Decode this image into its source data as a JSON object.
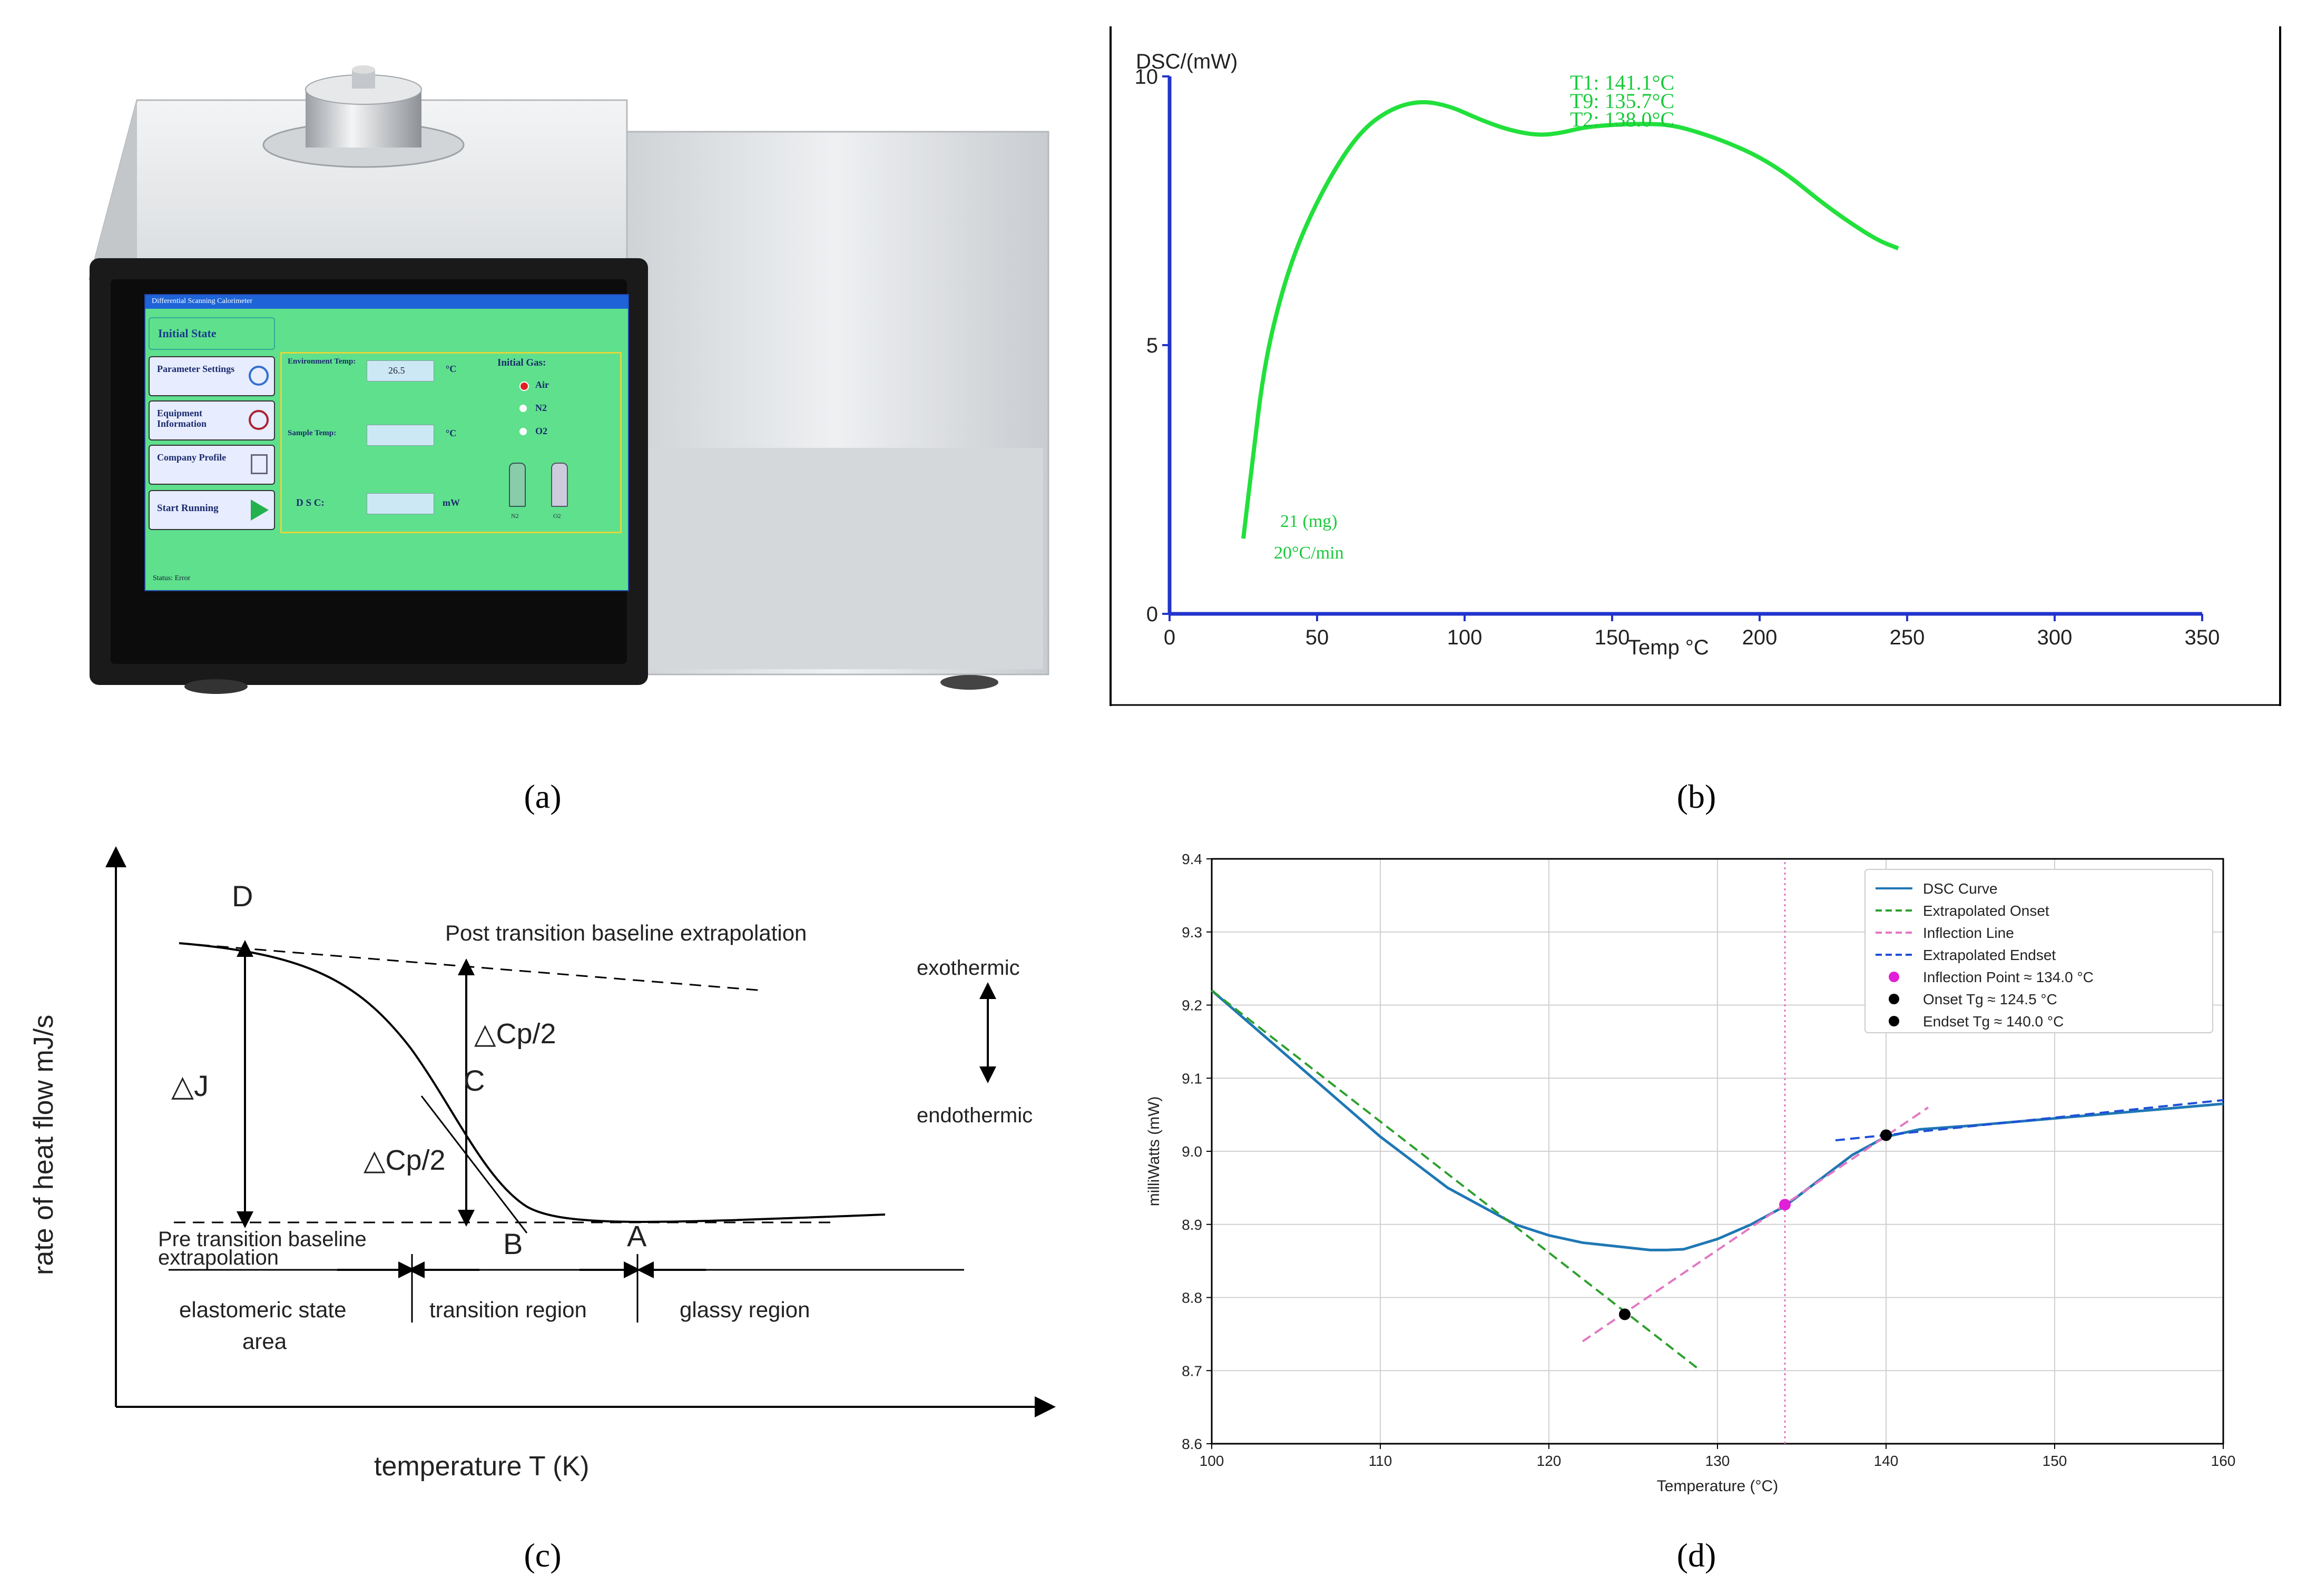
{
  "figure": {
    "captions": [
      "(a)",
      "(b)",
      "(c)",
      "(d)"
    ]
  },
  "panel_a": {
    "screen_title": "Differential Scanning Calorimeter",
    "menu": [
      "Initial State",
      "Parameter Settings",
      "Equipment Information",
      "Company Profile",
      "Start Running"
    ],
    "env_temp_label": "Environment Temp:",
    "env_temp_value": "26.5",
    "env_temp_unit": "°C",
    "sample_temp_label": "Sample Temp:",
    "sample_temp_unit": "°C",
    "dsc_label": "D S C:",
    "dsc_unit": "mW",
    "gas_title": "Initial Gas:",
    "gas_options": [
      "Air",
      "N2",
      "O2"
    ],
    "gas_selected": "Air",
    "gas_bottle_labels": [
      "N2",
      "O2"
    ],
    "status_text": "Status:  Error",
    "colors": {
      "screen_bg": "#5fe08d",
      "menu_bg": "#e7ecff",
      "header_bg": "#1e64d8"
    }
  },
  "panel_b": {
    "chart_data": {
      "type": "line",
      "ylabel": "DSC/(mW)",
      "xlabel": "Temp °C",
      "xlim": [
        0,
        350
      ],
      "ylim": [
        0,
        10
      ],
      "x_ticks": [
        "0",
        "50",
        "100",
        "150",
        "200",
        "250",
        "300",
        "350"
      ],
      "y_ticks": [
        "0",
        "5",
        "10"
      ],
      "annotations": [
        "T1: 141.1°C",
        "T9: 135.7°C",
        "T2: 138.0°C",
        "21 (mg)",
        "20°C/min"
      ],
      "series": [
        {
          "color": "#22e03c",
          "x": [
            25,
            28,
            32,
            38,
            45,
            55,
            65,
            75,
            85,
            95,
            105,
            115,
            125,
            133,
            140,
            150,
            160,
            170,
            180,
            190,
            200,
            210,
            220,
            230,
            240,
            247
          ],
          "y": [
            1.4,
            2.8,
            4.6,
            6.0,
            7.1,
            8.2,
            9.0,
            9.4,
            9.55,
            9.45,
            9.2,
            9.0,
            8.9,
            8.95,
            9.05,
            9.1,
            9.12,
            9.1,
            8.95,
            8.75,
            8.5,
            8.15,
            7.7,
            7.3,
            6.95,
            6.8
          ]
        }
      ],
      "grid": false
    }
  },
  "panel_c": {
    "ylabel": "rate of heat flow mJ/s",
    "xlabel": "temperature T (K)",
    "labels": {
      "D": "D",
      "C": "C",
      "B": "B",
      "A": "A",
      "dJ": "△J",
      "dcp_top": "△Cp/2",
      "dcp_bottom": "△Cp/2",
      "post": "Post transition baseline extrapolation",
      "pre_1": "Pre transition baseline",
      "pre_2": "extrapolation",
      "exo": "exothermic",
      "endo": "endothermic",
      "region1_1": "elastomeric state",
      "region1_2": "area",
      "region2": "transition region",
      "region3": "glassy region"
    }
  },
  "panel_d": {
    "chart_data": {
      "type": "line",
      "xlabel": "Temperature (°C)",
      "ylabel": "milliWatts (mW)",
      "xlim": [
        100,
        160
      ],
      "ylim": [
        8.6,
        9.4
      ],
      "x_ticks": [
        "100",
        "110",
        "120",
        "130",
        "140",
        "150",
        "160"
      ],
      "y_ticks": [
        "8.6",
        "8.7",
        "8.8",
        "8.9",
        "9.0",
        "9.1",
        "9.2",
        "9.3",
        "9.4"
      ],
      "grid": true,
      "legend_position": "top-right",
      "legend": [
        "DSC Curve",
        "Extrapolated Onset",
        "Inflection Line",
        "Extrapolated Endset",
        "Inflection Point ≈ 134.0 °C",
        "Onset Tg ≈ 124.5 °C",
        "Endset Tg ≈ 140.0 °C"
      ],
      "series": [
        {
          "name": "DSC Curve",
          "color": "#1f77b4",
          "x": [
            100,
            102,
            104,
            106,
            108,
            110,
            112,
            114,
            116,
            118,
            120,
            122,
            124,
            126,
            127,
            128,
            130,
            132,
            134,
            136,
            138,
            140,
            142,
            145,
            150,
            155,
            160
          ],
          "y": [
            9.22,
            9.18,
            9.14,
            9.1,
            9.06,
            9.02,
            8.985,
            8.95,
            8.925,
            8.9,
            8.885,
            8.875,
            8.87,
            8.865,
            8.865,
            8.866,
            8.88,
            8.9,
            8.925,
            8.96,
            8.995,
            9.02,
            9.03,
            9.035,
            9.045,
            9.055,
            9.065
          ]
        },
        {
          "name": "Extrapolated Onset",
          "color": "#2ca02c",
          "style": "dashed",
          "x": [
            100,
            129
          ],
          "y": [
            9.22,
            8.7
          ]
        },
        {
          "name": "Inflection Line",
          "color": "#e377c2",
          "style": "dashed",
          "x": [
            122,
            142.5
          ],
          "y": [
            8.74,
            9.06
          ]
        },
        {
          "name": "Extrapolated Endset",
          "color": "#1f4fd8",
          "style": "dashed",
          "x": [
            137,
            160
          ],
          "y": [
            9.015,
            9.07
          ]
        },
        {
          "name": "Inflection Point ≈ 134.0 °C",
          "type": "point",
          "color": "#e01fd6",
          "x": [
            134.0
          ],
          "y": [
            8.927
          ]
        },
        {
          "name": "Onset Tg ≈ 124.5 °C",
          "type": "point",
          "color": "#000000",
          "x": [
            124.5
          ],
          "y": [
            8.777
          ]
        },
        {
          "name": "Endset Tg ≈ 140.0 °C",
          "type": "point",
          "color": "#000000",
          "x": [
            140.0
          ],
          "y": [
            9.022
          ]
        }
      ],
      "vertical_line": {
        "x": 134.0,
        "color": "#e377c2",
        "style": "dotted"
      }
    }
  }
}
